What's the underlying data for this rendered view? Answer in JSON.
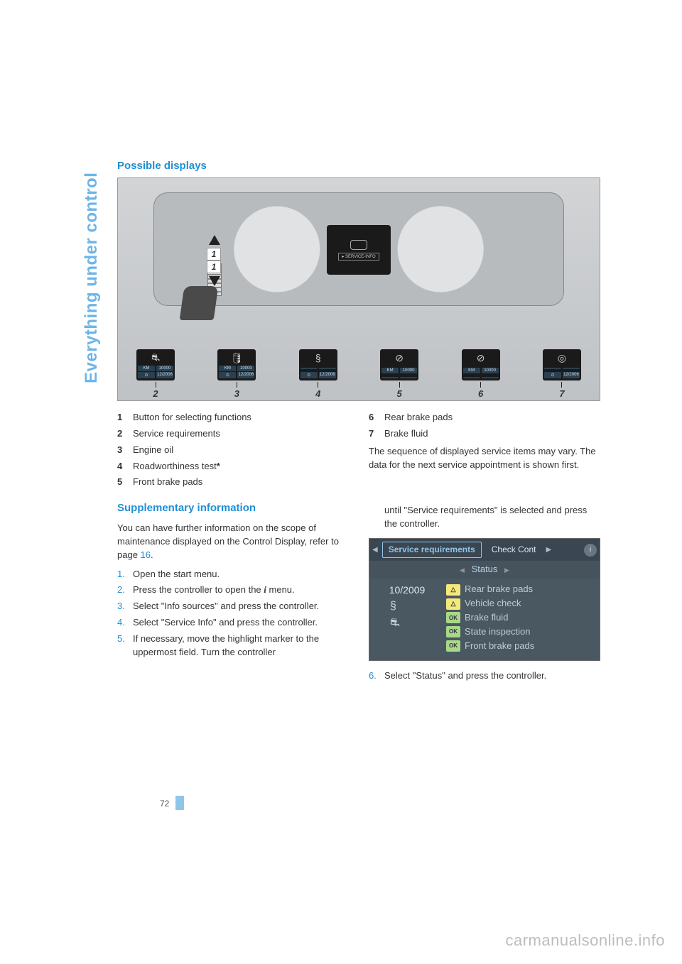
{
  "sideTitle": "Everything under control",
  "headings": {
    "possible": "Possible displays",
    "supplementary": "Supplementary information"
  },
  "figure": {
    "serviceInfoLabel": "▸ SERVICE-INFO",
    "stalkLabel": "1",
    "icons": [
      {
        "num": "2",
        "sym": "⛐",
        "d1": "KM",
        "d2": "10000",
        "d3": "⊙",
        "d4": "12/2006"
      },
      {
        "num": "3",
        "sym": "🛢",
        "d1": "KM",
        "d2": "10000",
        "d3": "⊙",
        "d4": "12/2006"
      },
      {
        "num": "4",
        "sym": "§",
        "d1": "",
        "d2": "",
        "d3": "⊙",
        "d4": "12/2006"
      },
      {
        "num": "5",
        "sym": "⊘",
        "d1": "KM",
        "d2": "10000",
        "d3": "",
        "d4": ""
      },
      {
        "num": "6",
        "sym": "⊘",
        "d1": "KM",
        "d2": "10000",
        "d3": "",
        "d4": ""
      },
      {
        "num": "7",
        "sym": "◎",
        "d1": "",
        "d2": "",
        "d3": "⊙",
        "d4": "12/2006"
      }
    ]
  },
  "legendLeft": [
    {
      "n": "1",
      "t": "Button for selecting functions"
    },
    {
      "n": "2",
      "t": "Service requirements"
    },
    {
      "n": "3",
      "t": "Engine oil"
    },
    {
      "n": "4",
      "t": "Roadworthiness test",
      "star": true
    },
    {
      "n": "5",
      "t": "Front brake pads"
    }
  ],
  "legendRight": [
    {
      "n": "6",
      "t": "Rear brake pads"
    },
    {
      "n": "7",
      "t": "Brake fluid"
    }
  ],
  "rightPara": "The sequence of displayed service items may vary. The data for the next service appointment is shown first.",
  "supp": {
    "intro1": "You can have further information on the scope of maintenance displayed on the Control Display, refer to page ",
    "introLink": "16",
    "intro2": ".",
    "steps": [
      "Open the start menu.",
      "Press the controller to open the  menu.",
      "Select \"Info sources\" and press the controller.",
      "Select \"Service Info\" and press the controller.",
      "If necessary, move the highlight marker to the uppermost field. Turn the controller"
    ],
    "continued": "until \"Service requirements\" is selected and press the controller.",
    "step6": "Select \"Status\" and press the controller."
  },
  "screenshot": {
    "tabActive": "Service requirements",
    "tabNext": "Check Cont",
    "sub": "Status",
    "date": "10/2009",
    "items": [
      {
        "badge": "warn",
        "sym": "△",
        "label": "Rear brake pads"
      },
      {
        "badge": "warn",
        "sym": "△",
        "label": "Vehicle check"
      },
      {
        "badge": "ok",
        "sym": "OK",
        "label": "Brake fluid"
      },
      {
        "badge": "ok",
        "sym": "OK",
        "label": "State inspection"
      },
      {
        "badge": "ok",
        "sym": "OK",
        "label": "Front brake pads"
      }
    ]
  },
  "pageNumber": "72",
  "watermark": "carmanualsonline.info"
}
